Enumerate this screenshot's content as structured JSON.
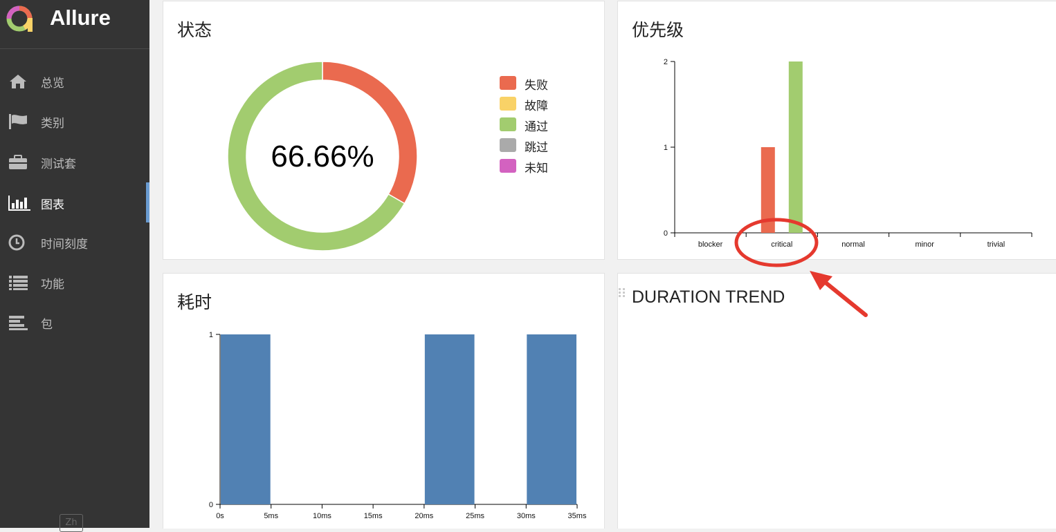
{
  "app": {
    "title": "Allure",
    "language_button": "Zh"
  },
  "sidebar": {
    "items": [
      {
        "label": "总览",
        "icon": "home-icon"
      },
      {
        "label": "类别",
        "icon": "flag-icon"
      },
      {
        "label": "测试套",
        "icon": "briefcase-icon"
      },
      {
        "label": "图表",
        "icon": "bar-chart-icon",
        "active": true
      },
      {
        "label": "时间刻度",
        "icon": "clock-icon"
      },
      {
        "label": "功能",
        "icon": "list-icon"
      },
      {
        "label": "包",
        "icon": "align-left-icon"
      }
    ]
  },
  "widgets": {
    "status": {
      "title": "状态"
    },
    "priority": {
      "title": "优先级"
    },
    "duration": {
      "title": "耗时"
    },
    "trend": {
      "title": "DURATION TREND"
    }
  },
  "colors": {
    "failed": "#ea6a4f",
    "broken": "#f9d267",
    "passed": "#a2cc6f",
    "skipped": "#aaaaaa",
    "unknown": "#d362c0",
    "duration_bar": "#5181b3",
    "annotation": "#e5392e"
  },
  "chart_data": [
    {
      "type": "pie",
      "title": "状态",
      "center_label": "66.66%",
      "categories": [
        "失败",
        "故障",
        "通过",
        "跳过",
        "未知"
      ],
      "values": [
        1,
        0,
        2,
        0,
        0
      ]
    },
    {
      "type": "bar",
      "title": "优先级",
      "categories": [
        "blocker",
        "critical",
        "normal",
        "minor",
        "trivial"
      ],
      "series": [
        {
          "values": [
            0,
            1,
            0,
            0,
            0
          ]
        },
        {
          "values": [
            0,
            2,
            0,
            0,
            0
          ]
        }
      ],
      "ylim": [
        0,
        2
      ],
      "yticks": [
        "0",
        "1",
        "2"
      ]
    },
    {
      "type": "bar",
      "title": "耗时",
      "bins": [
        {
          "from": 0,
          "to": 5,
          "value": 1
        },
        {
          "from": 20,
          "to": 25,
          "value": 1
        },
        {
          "from": 30,
          "to": 35,
          "value": 1
        }
      ],
      "xticks": [
        "0s",
        "5ms",
        "10ms",
        "15ms",
        "20ms",
        "25ms",
        "30ms",
        "35ms"
      ],
      "xlim": [
        0,
        35
      ],
      "ylim": [
        0,
        1
      ],
      "yticks": [
        "0",
        "1"
      ]
    }
  ]
}
